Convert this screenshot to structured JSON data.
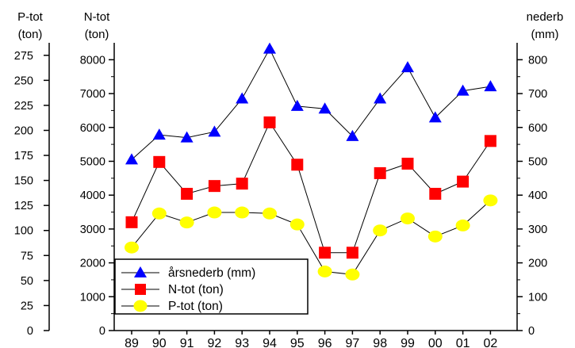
{
  "chart_data": {
    "type": "line",
    "categories": [
      "89",
      "90",
      "91",
      "92",
      "93",
      "94",
      "95",
      "96",
      "97",
      "98",
      "99",
      "00",
      "01",
      "02"
    ],
    "axes": {
      "p_tot": {
        "title_line1": "P-tot",
        "title_line2": "(ton)",
        "ylim": [
          0,
          287.5
        ],
        "ticks": [
          0,
          25,
          50,
          75,
          100,
          125,
          150,
          175,
          200,
          225,
          250,
          275
        ],
        "tick_labels": [
          "0",
          "25",
          "50",
          "75",
          "100",
          "125",
          "150",
          "175",
          "200",
          "225",
          "250",
          "275"
        ]
      },
      "n_tot": {
        "title_line1": "N-tot",
        "title_line2": "(ton)",
        "ylim": [
          0,
          8500
        ],
        "ticks": [
          0,
          1000,
          2000,
          3000,
          4000,
          5000,
          6000,
          7000,
          8000
        ],
        "tick_labels": [
          "0",
          "1000",
          "2000",
          "3000",
          "4000",
          "5000",
          "6000",
          "7000",
          "8000"
        ]
      },
      "nederb": {
        "title_line1": "nederb",
        "title_line2": "(mm)",
        "ylim": [
          0,
          850
        ],
        "ticks": [
          0,
          100,
          200,
          300,
          400,
          500,
          600,
          700,
          800
        ],
        "tick_labels": [
          "0",
          "100",
          "200",
          "300",
          "400",
          "500",
          "600",
          "700",
          "800"
        ]
      }
    },
    "series": [
      {
        "name": "årsnederb (mm)",
        "axis": "nederb",
        "color": "#0000ff",
        "marker": "triangle",
        "values": [
          505,
          578,
          570,
          587,
          685,
          832,
          663,
          655,
          574,
          685,
          777,
          629,
          708,
          721
        ]
      },
      {
        "name": "N-tot (ton)",
        "axis": "n_tot",
        "color": "#ff0000",
        "marker": "square",
        "values": [
          3200,
          4980,
          4040,
          4270,
          4340,
          6150,
          4900,
          2300,
          2300,
          4650,
          4930,
          4040,
          4400,
          5600
        ]
      },
      {
        "name": "P-tot (ton)",
        "axis": "p_tot",
        "color": "#ffff00",
        "marker": "circle",
        "values": [
          83,
          117,
          108,
          118,
          118,
          117,
          106,
          59,
          56,
          100,
          112,
          94,
          105,
          130
        ]
      }
    ],
    "legend": {
      "position": "bottom-left"
    },
    "grid": false
  }
}
